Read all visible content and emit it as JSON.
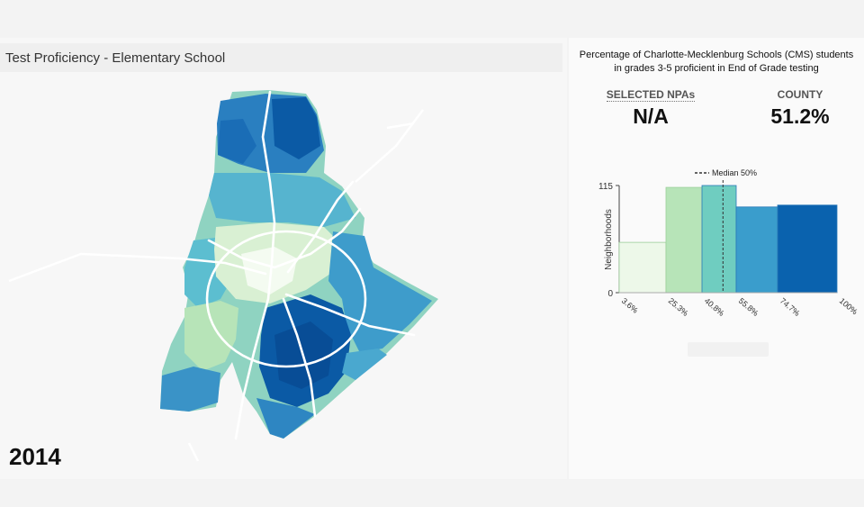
{
  "map": {
    "title": "Test Proficiency - Elementary School",
    "year": "2014"
  },
  "info": {
    "description_line1": "Percentage of Charlotte-Mecklenburg Schools (CMS) students",
    "description_line2": "in grades 3-5 proficient in End of Grade testing",
    "selected_label": "SELECTED NPAs",
    "selected_value": "N/A",
    "county_label": "COUNTY",
    "county_value": "51.2%"
  },
  "chart_data": {
    "type": "bar",
    "title": "",
    "xlabel": "",
    "ylabel": "Neighborhoods",
    "bin_edges": [
      "3.6%",
      "25.3%",
      "40.8%",
      "55.8%",
      "74.7%",
      "100%"
    ],
    "bin_edge_values": [
      3.6,
      25.3,
      40.8,
      55.8,
      74.7,
      100
    ],
    "values": [
      54,
      113,
      115,
      92,
      94
    ],
    "ylim": [
      0,
      115
    ],
    "yticks": [
      "0",
      "115"
    ],
    "median_label": "Median 50%",
    "median_value": 50,
    "colors": [
      "#edf8e9",
      "#b7e4b8",
      "#6fcdc0",
      "#3a9dcc",
      "#0a62ae"
    ]
  },
  "colors": {
    "road": "#ffffff",
    "map_light": "#edf8e9",
    "map_dark": "#084d96"
  }
}
